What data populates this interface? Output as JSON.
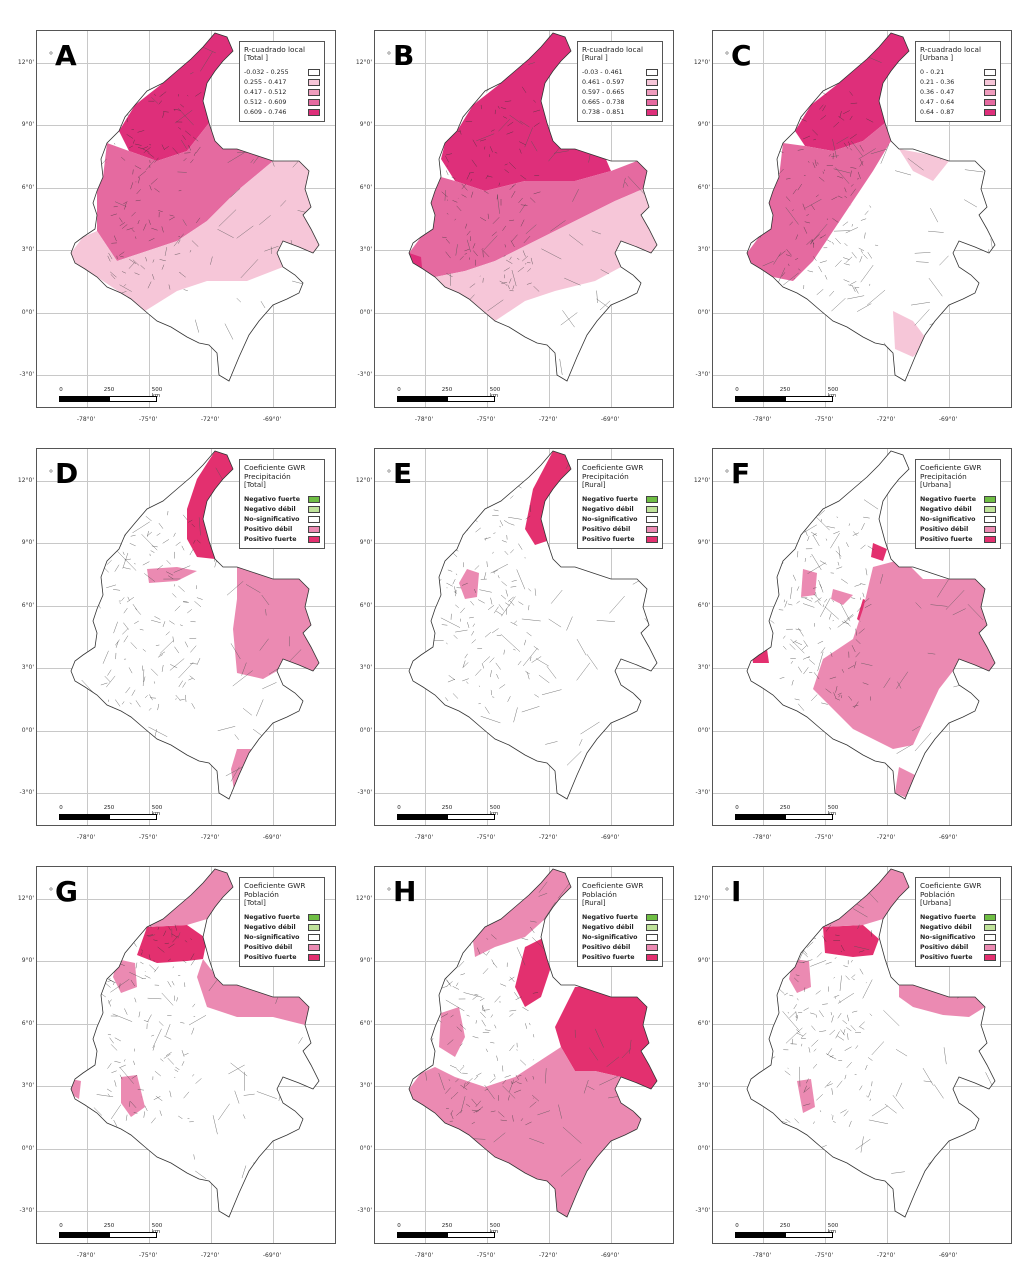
{
  "y_ticks": [
    "12°0'",
    "9°0'",
    "6°0'",
    "3°0'",
    "0°0'",
    "-3°0'"
  ],
  "x_ticks": [
    "-78°0'",
    "-75°0'",
    "-72°0'",
    "-69°0'"
  ],
  "scale": {
    "ticks": [
      "0",
      "250",
      "500 km"
    ]
  },
  "colors": {
    "none": "#ffffff",
    "light": "#f6c6d8",
    "mid": "#ef9cbd",
    "strong": "#e56aa0",
    "deep": "#de2f7a",
    "neg_strong": "#6fbe44",
    "neg_weak": "#bfe39a",
    "nonsig": "#ffffff",
    "pos_weak": "#eb8ab2",
    "pos_strong": "#e3306f",
    "border": "#444444"
  },
  "panels": [
    {
      "letter": "A",
      "legend_title": "R-cuadrado local",
      "legend_sub": "[Total ]",
      "numeric": true,
      "items": [
        {
          "label": "-0.032 - 0.255",
          "color": "#ffffff"
        },
        {
          "label": "0.255 - 0.417",
          "color": "#f6c6d8"
        },
        {
          "label": "0.417 - 0.512",
          "color": "#ef9cbd"
        },
        {
          "label": "0.512 - 0.609",
          "color": "#e56aa0"
        },
        {
          "label": "0.609 - 0.746",
          "color": "#de2f7a"
        }
      ]
    },
    {
      "letter": "B",
      "legend_title": "R-cuadrado local",
      "legend_sub": "[Rural ]",
      "numeric": true,
      "items": [
        {
          "label": "-0.03 - 0.461",
          "color": "#ffffff"
        },
        {
          "label": "0.461 - 0.597",
          "color": "#f6c6d8"
        },
        {
          "label": "0.597 - 0.665",
          "color": "#ef9cbd"
        },
        {
          "label": "0.665 - 0.738",
          "color": "#e56aa0"
        },
        {
          "label": "0.738 - 0.851",
          "color": "#de2f7a"
        }
      ]
    },
    {
      "letter": "C",
      "legend_title": "R-cuadrado local",
      "legend_sub": "[Urbana ]",
      "numeric": true,
      "items": [
        {
          "label": "0 - 0.21",
          "color": "#ffffff"
        },
        {
          "label": "0.21 - 0.36",
          "color": "#f6c6d8"
        },
        {
          "label": "0.36 - 0.47",
          "color": "#ef9cbd"
        },
        {
          "label": "0.47 - 0.64",
          "color": "#e56aa0"
        },
        {
          "label": "0.64 - 0.87",
          "color": "#de2f7a"
        }
      ]
    },
    {
      "letter": "D",
      "legend_title": "Coeficiente GWR\nPrecipitación",
      "legend_sub": "[Total]",
      "numeric": false,
      "items": [
        {
          "label": "Negativo fuerte",
          "color": "#6fbe44"
        },
        {
          "label": "Negativo débil",
          "color": "#bfe39a"
        },
        {
          "label": "No-significativo",
          "color": "#ffffff"
        },
        {
          "label": "Positivo débil",
          "color": "#eb8ab2"
        },
        {
          "label": "Positivo fuerte",
          "color": "#e3306f"
        }
      ]
    },
    {
      "letter": "E",
      "legend_title": "Coeficiente GWR\nPrecipitación",
      "legend_sub": "[Rural]",
      "numeric": false,
      "items": [
        {
          "label": "Negativo fuerte",
          "color": "#6fbe44"
        },
        {
          "label": "Negativo débil",
          "color": "#bfe39a"
        },
        {
          "label": "No-significativo",
          "color": "#ffffff"
        },
        {
          "label": "Positivo débil",
          "color": "#eb8ab2"
        },
        {
          "label": "Positivo fuerte",
          "color": "#e3306f"
        }
      ]
    },
    {
      "letter": "F",
      "legend_title": "Coeficiente GWR\nPrecipitación",
      "legend_sub": "[Urbana]",
      "numeric": false,
      "items": [
        {
          "label": "Negativo fuerte",
          "color": "#6fbe44"
        },
        {
          "label": "Negativo débil",
          "color": "#bfe39a"
        },
        {
          "label": "No-significativo",
          "color": "#ffffff"
        },
        {
          "label": "Positivo débil",
          "color": "#eb8ab2"
        },
        {
          "label": "Positivo fuerte",
          "color": "#e3306f"
        }
      ]
    },
    {
      "letter": "G",
      "legend_title": "Coeficiente GWR\nPoblación",
      "legend_sub": "[Total]",
      "numeric": false,
      "items": [
        {
          "label": "Negativo fuerte",
          "color": "#6fbe44"
        },
        {
          "label": "Negativo débil",
          "color": "#bfe39a"
        },
        {
          "label": "No-significativo",
          "color": "#ffffff"
        },
        {
          "label": "Positivo débil",
          "color": "#eb8ab2"
        },
        {
          "label": "Positivo fuerte",
          "color": "#e3306f"
        }
      ]
    },
    {
      "letter": "H",
      "legend_title": "Coeficiente GWR\nPoblación",
      "legend_sub": "[Rural]",
      "numeric": false,
      "items": [
        {
          "label": "Negativo fuerte",
          "color": "#6fbe44"
        },
        {
          "label": "Negativo débil",
          "color": "#bfe39a"
        },
        {
          "label": "No-significativo",
          "color": "#ffffff"
        },
        {
          "label": "Positivo débil",
          "color": "#eb8ab2"
        },
        {
          "label": "Positivo fuerte",
          "color": "#e3306f"
        }
      ]
    },
    {
      "letter": "I",
      "legend_title": "Coeficiente GWR\nPoblación",
      "legend_sub": "[Urbana]",
      "numeric": false,
      "items": [
        {
          "label": "Negativo fuerte",
          "color": "#6fbe44"
        },
        {
          "label": "Negativo débil",
          "color": "#bfe39a"
        },
        {
          "label": "No-significativo",
          "color": "#ffffff"
        },
        {
          "label": "Positivo débil",
          "color": "#eb8ab2"
        },
        {
          "label": "Positivo fuerte",
          "color": "#e3306f"
        }
      ]
    }
  ]
}
